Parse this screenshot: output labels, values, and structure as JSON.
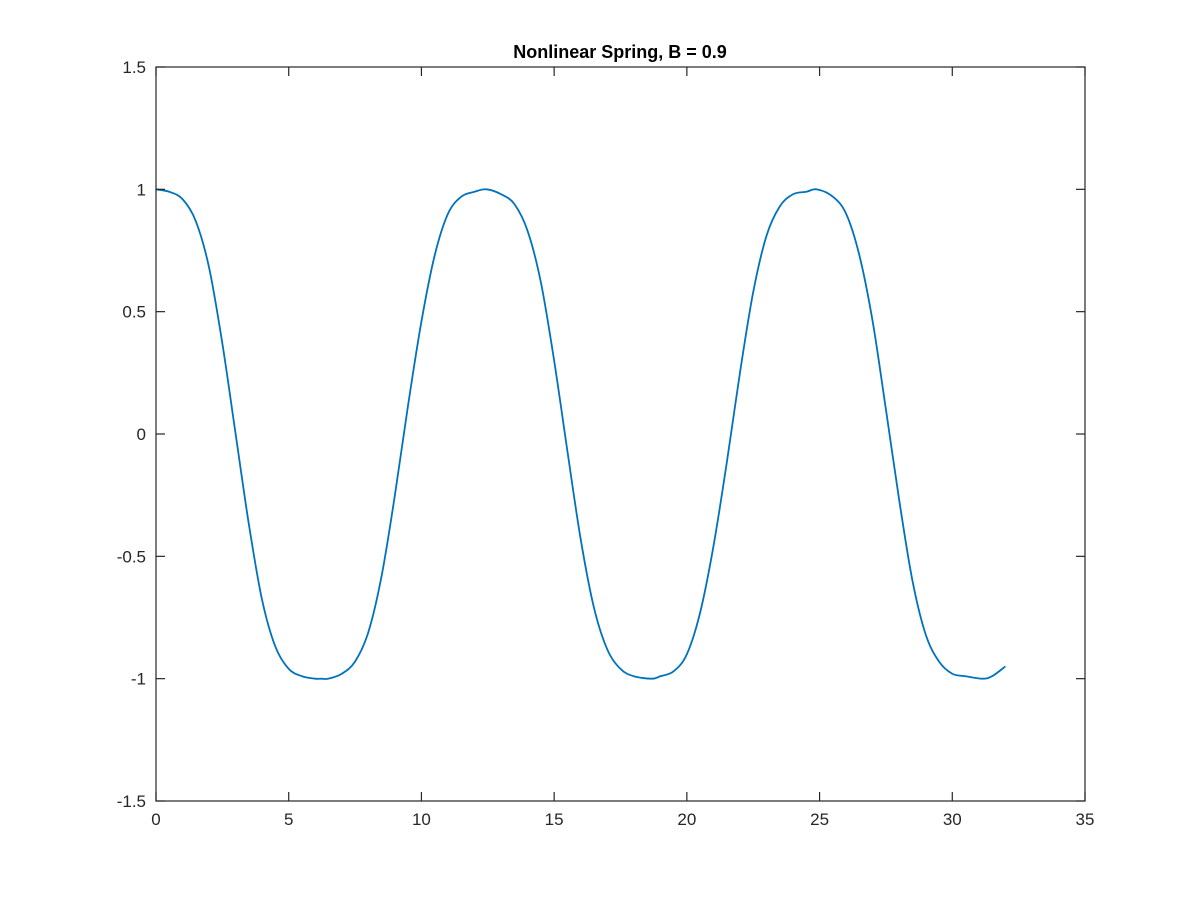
{
  "chart_data": {
    "type": "line",
    "title": "Nonlinear Spring, B = 0.9",
    "xlabel": "",
    "ylabel": "",
    "xlim": [
      0,
      35
    ],
    "ylim": [
      -1.5,
      1.5
    ],
    "xticks": [
      0,
      5,
      10,
      15,
      20,
      25,
      30,
      35
    ],
    "yticks": [
      -1.5,
      -1,
      -0.5,
      0,
      0.5,
      1,
      1.5
    ],
    "xtick_labels": [
      "0",
      "5",
      "10",
      "15",
      "20",
      "25",
      "30",
      "35"
    ],
    "ytick_labels": [
      "-1.5",
      "-1",
      "-0.5",
      "0",
      "0.5",
      "1",
      "1.5"
    ],
    "grid": false,
    "legend": "none",
    "series": [
      {
        "color": "#0072BD",
        "x": [
          0,
          0.5,
          1,
          1.5,
          2,
          2.5,
          3,
          3.5,
          4,
          4.5,
          5,
          5.5,
          6,
          6.23,
          6.5,
          7,
          7.5,
          8,
          8.5,
          9,
          9.5,
          10,
          10.5,
          11,
          11.5,
          12,
          12.45,
          13,
          13.5,
          14,
          14.5,
          15,
          15.5,
          16,
          16.5,
          17,
          17.5,
          18,
          18.68,
          19,
          19.5,
          20,
          20.5,
          21,
          21.5,
          22,
          22.5,
          23,
          23.5,
          24,
          24.5,
          24.9,
          25.5,
          26,
          26.5,
          27,
          27.5,
          28,
          28.5,
          29,
          29.5,
          30,
          30.5,
          31.13,
          31.5,
          32
        ],
        "y": [
          1,
          0.99,
          0.96,
          0.87,
          0.68,
          0.37,
          0,
          -0.37,
          -0.68,
          -0.87,
          -0.96,
          -0.99,
          -1,
          -1,
          -1,
          -0.98,
          -0.93,
          -0.81,
          -0.58,
          -0.25,
          0.12,
          0.46,
          0.73,
          0.9,
          0.97,
          0.99,
          1,
          0.98,
          0.94,
          0.83,
          0.62,
          0.3,
          -0.07,
          -0.43,
          -0.71,
          -0.88,
          -0.96,
          -0.99,
          -1,
          -0.99,
          -0.97,
          -0.9,
          -0.73,
          -0.46,
          -0.12,
          0.25,
          0.58,
          0.81,
          0.93,
          0.98,
          0.99,
          1,
          0.97,
          0.9,
          0.73,
          0.46,
          0.1,
          -0.27,
          -0.6,
          -0.82,
          -0.93,
          -0.98,
          -0.99,
          -1,
          -0.99,
          -0.95
        ]
      }
    ]
  }
}
